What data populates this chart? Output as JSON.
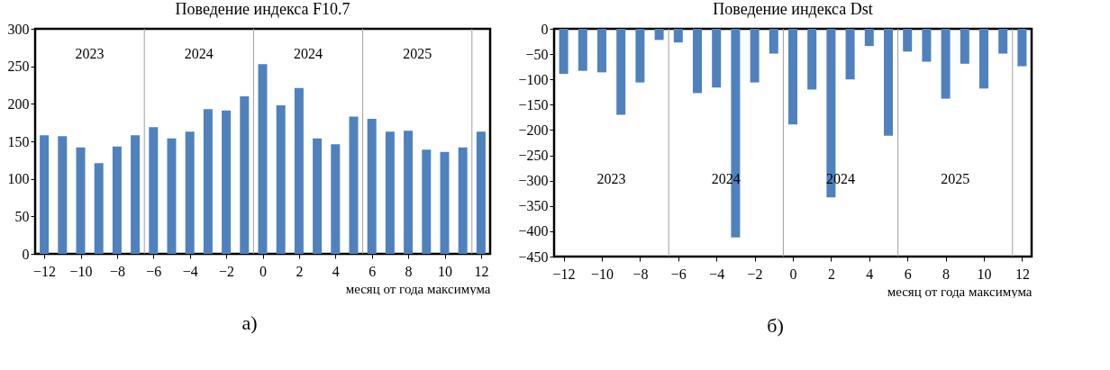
{
  "chart_data": [
    {
      "type": "bar",
      "title": "Поведение индекса F10.7",
      "xlabel": "месяц от года максимума",
      "x": [
        -12,
        -11,
        -10,
        -9,
        -8,
        -7,
        -6,
        -5,
        -4,
        -3,
        -2,
        -1,
        0,
        1,
        2,
        3,
        4,
        5,
        6,
        7,
        8,
        9,
        10,
        11,
        12
      ],
      "values": [
        158,
        157,
        142,
        121,
        143,
        158,
        169,
        154,
        163,
        193,
        191,
        210,
        253,
        198,
        221,
        154,
        146,
        183,
        180,
        163,
        164,
        139,
        136,
        142,
        163
      ],
      "color": "#4f81bd",
      "xlim": [
        -12.5,
        12.5
      ],
      "xticks": [
        -12,
        -10,
        -8,
        -6,
        -4,
        -2,
        0,
        2,
        4,
        6,
        8,
        10,
        12
      ],
      "ylim": [
        0,
        300
      ],
      "yticks": [
        0,
        50,
        100,
        150,
        200,
        250,
        300
      ],
      "ref_lines": [
        {
          "axis": "x",
          "value": -6.5,
          "color": "#a0a0a0"
        },
        {
          "axis": "x",
          "value": -0.5,
          "color": "#a0a0a0"
        },
        {
          "axis": "x",
          "value": 5.5,
          "color": "#a0a0a0"
        },
        {
          "axis": "x",
          "value": 11.5,
          "color": "#a0a0a0"
        }
      ],
      "annotations": [
        "2023",
        "2024",
        "2024",
        "2025",
        "а)"
      ]
    },
    {
      "type": "bar",
      "title": "Поведение индекса Dst",
      "xlabel": "месяц от года максимума",
      "x": [
        -12,
        -11,
        -10,
        -9,
        -8,
        -7,
        -6,
        -5,
        -4,
        -3,
        -2,
        -1,
        0,
        1,
        2,
        3,
        4,
        5,
        6,
        7,
        8,
        9,
        10,
        11,
        12
      ],
      "values": [
        -89,
        -83,
        -86,
        -170,
        -106,
        -22,
        -27,
        -127,
        -116,
        -412,
        -106,
        -49,
        -189,
        -120,
        -333,
        -100,
        -34,
        -211,
        -45,
        -65,
        -138,
        -69,
        -118,
        -49,
        -74
      ],
      "color": "#4f81bd",
      "xlim": [
        -12.5,
        12.5
      ],
      "xticks": [
        -12,
        -10,
        -8,
        -6,
        -4,
        -2,
        0,
        2,
        4,
        6,
        8,
        10,
        12
      ],
      "ylim": [
        -450,
        0
      ],
      "yticks": [
        -450,
        -400,
        -350,
        -300,
        -250,
        -200,
        -150,
        -100,
        -50,
        0
      ],
      "ref_lines": [
        {
          "axis": "x",
          "value": -6.5,
          "color": "#a0a0a0"
        },
        {
          "axis": "x",
          "value": -0.5,
          "color": "#a0a0a0"
        },
        {
          "axis": "x",
          "value": 5.5,
          "color": "#a0a0a0"
        },
        {
          "axis": "x",
          "value": 11.5,
          "color": "#a0a0a0"
        }
      ],
      "annotations": [
        "2023",
        "2024",
        "2024",
        "2025",
        "б)"
      ]
    }
  ]
}
